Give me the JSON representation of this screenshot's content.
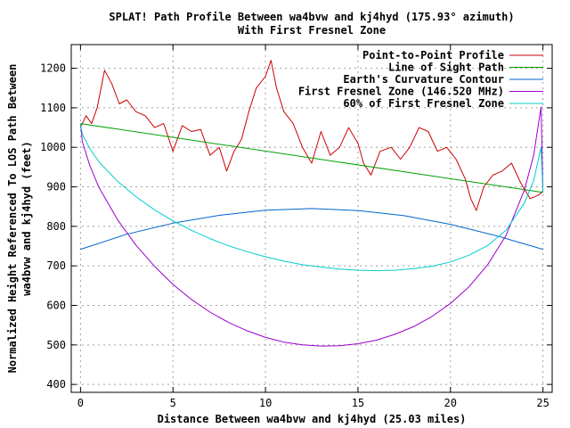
{
  "chart_data": {
    "type": "line",
    "title": "SPLAT! Path Profile Between wa4bvw and kj4hyd (175.93° azimuth)",
    "subtitle": "With First Fresnel Zone",
    "xlabel": "Distance Between wa4bvw and kj4hyd (25.03 miles)",
    "ylabel_line1": "Normalized Height Referenced To LOS Path Between",
    "ylabel_line2": "wa4bvw and kj4hyd (feet)",
    "xlim": [
      -0.5,
      25.5
    ],
    "ylim": [
      380,
      1260
    ],
    "x_ticks": [
      0,
      5,
      10,
      15,
      20,
      25
    ],
    "y_ticks": [
      400,
      500,
      600,
      700,
      800,
      900,
      1000,
      1100,
      1200
    ],
    "grid": true,
    "legend_position": "top-right",
    "series": [
      {
        "name": "Point-to-Point Profile",
        "color": "#cc0000",
        "x": [
          0,
          0.3,
          0.6,
          0.9,
          1.3,
          1.7,
          2.1,
          2.5,
          3.0,
          3.5,
          4.0,
          4.5,
          5.0,
          5.5,
          6.0,
          6.5,
          7.0,
          7.5,
          7.9,
          8.3,
          8.7,
          9.1,
          9.5,
          10.0,
          10.3,
          10.6,
          11.0,
          11.5,
          12.0,
          12.5,
          13.0,
          13.5,
          14.0,
          14.5,
          15.0,
          15.3,
          15.7,
          16.2,
          16.8,
          17.3,
          17.8,
          18.3,
          18.8,
          19.3,
          19.8,
          20.3,
          20.8,
          21.1,
          21.4,
          21.8,
          22.3,
          22.8,
          23.3,
          23.8,
          24.3,
          24.8,
          25.0
        ],
        "y": [
          1050,
          1080,
          1060,
          1100,
          1195,
          1160,
          1110,
          1120,
          1090,
          1080,
          1050,
          1060,
          990,
          1055,
          1040,
          1045,
          980,
          1000,
          940,
          990,
          1020,
          1090,
          1150,
          1180,
          1220,
          1150,
          1090,
          1060,
          1000,
          960,
          1040,
          980,
          1000,
          1050,
          1010,
          960,
          930,
          990,
          1000,
          970,
          1000,
          1050,
          1040,
          990,
          1000,
          970,
          920,
          870,
          840,
          900,
          930,
          940,
          960,
          910,
          870,
          880,
          890
        ]
      },
      {
        "name": "Line of Sight Path",
        "color": "#00a000",
        "x": [
          0,
          25
        ],
        "y": [
          1060,
          886
        ]
      },
      {
        "name": "Earth's Curvature Contour",
        "color": "#0066cc",
        "x": [
          0,
          2.5,
          5,
          7.5,
          10,
          12.5,
          15,
          17.5,
          20,
          22.5,
          25
        ],
        "y": [
          742,
          780,
          808,
          828,
          841,
          845,
          840,
          827,
          805,
          776,
          742
        ]
      },
      {
        "name": "First Fresnel Zone (146.520 MHz)",
        "color": "#9900cc",
        "x": [
          0,
          0.1,
          0.5,
          1,
          2,
          3,
          4,
          5,
          6,
          7,
          8,
          9,
          10,
          11,
          12,
          13,
          14,
          15,
          16,
          17,
          18,
          19,
          20,
          21,
          22,
          23,
          24,
          24.5,
          24.9,
          25
        ],
        "y": [
          1060,
          1014,
          954,
          898,
          817,
          752,
          699,
          653,
          615,
          583,
          557,
          536,
          519,
          507,
          500,
          497,
          498,
          503,
          512,
          527,
          546,
          572,
          605,
          647,
          702,
          777,
          892,
          980,
          1102,
          886
        ]
      },
      {
        "name": "60% of First Fresnel Zone",
        "color": "#00cccc",
        "x": [
          0,
          0.1,
          0.5,
          1,
          2,
          3,
          4,
          5,
          6,
          7,
          8,
          9,
          10,
          11,
          12,
          13,
          14,
          15,
          16,
          17,
          18,
          19,
          20,
          21,
          22,
          23,
          24,
          24.5,
          24.9,
          25
        ],
        "y": [
          1060,
          1033,
          997,
          963,
          914,
          875,
          842,
          814,
          790,
          769,
          751,
          736,
          723,
          712,
          703,
          697,
          692,
          689,
          688,
          689,
          693,
          699,
          710,
          727,
          751,
          790,
          859,
          916,
          1000,
          886
        ]
      }
    ]
  }
}
